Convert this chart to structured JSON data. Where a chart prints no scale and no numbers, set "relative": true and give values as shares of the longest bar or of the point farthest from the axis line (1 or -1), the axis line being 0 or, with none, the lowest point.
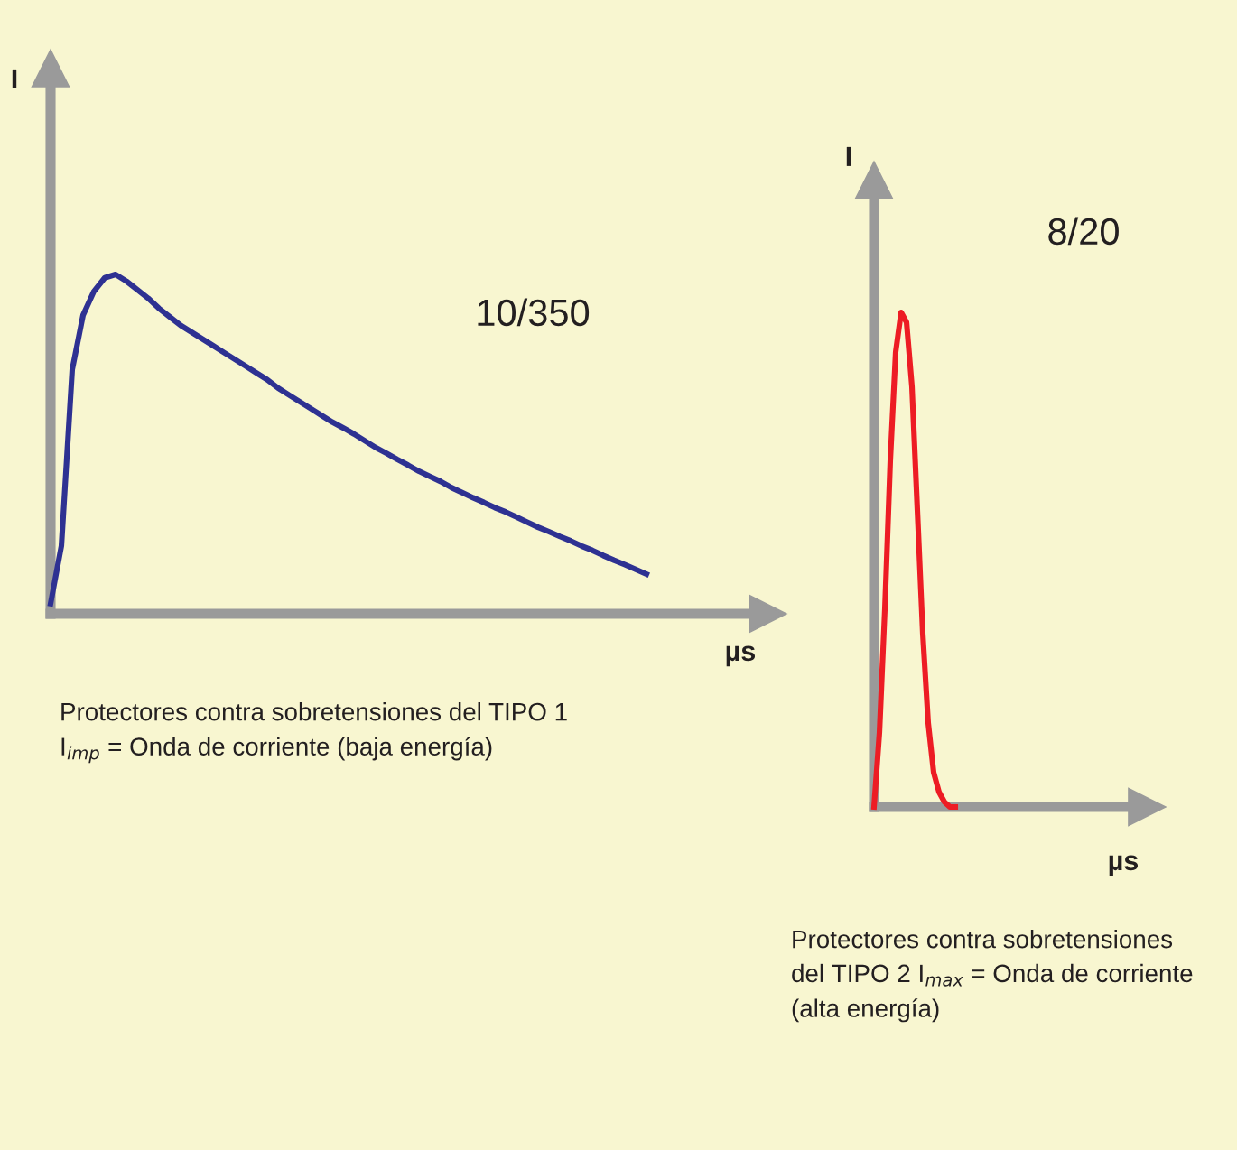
{
  "chart_data": [
    {
      "type": "line",
      "xlabel": "µs",
      "ylabel": "I",
      "relative": true,
      "categories": [
        null,
        null,
        null,
        null,
        null,
        null,
        null,
        null,
        null,
        null,
        null,
        null,
        null,
        null,
        null,
        null,
        null,
        null,
        null,
        null,
        null,
        null,
        null,
        null,
        null,
        null,
        null,
        null,
        null,
        null,
        null,
        null,
        null,
        null,
        null,
        null,
        null,
        null,
        null,
        null,
        null,
        null,
        null,
        null,
        null,
        null,
        null,
        null,
        null,
        null,
        null,
        null,
        null,
        null,
        null,
        null
      ],
      "series": [
        {
          "color": "#2e3192",
          "values": [
            0.03,
            0.2,
            0.72,
            0.88,
            0.95,
            0.99,
            1.0,
            0.98,
            0.955,
            0.93,
            0.9,
            0.875,
            0.85,
            0.83,
            0.81,
            0.79,
            0.77,
            0.75,
            0.73,
            0.71,
            0.69,
            0.665,
            0.645,
            0.625,
            0.605,
            0.585,
            0.565,
            0.548,
            0.53,
            0.51,
            0.49,
            0.473,
            0.455,
            0.438,
            0.42,
            0.405,
            0.39,
            0.372,
            0.357,
            0.342,
            0.328,
            0.313,
            0.3,
            0.285,
            0.27,
            0.255,
            0.242,
            0.228,
            0.215,
            0.2,
            0.187,
            0.172,
            0.158,
            0.145,
            0.131,
            0.117
          ]
        }
      ],
      "annotations": [
        "10/350",
        "Protectores contra sobretensiones del TIPO 1\nI$_{imp}$ = Onda de corriente (baja energía)"
      ]
    },
    {
      "type": "line",
      "xlabel": "µs",
      "ylabel": "I",
      "relative": true,
      "categories": [
        null,
        null,
        null,
        null,
        null,
        null,
        null,
        null,
        null,
        null,
        null,
        null,
        null,
        null,
        null,
        null
      ],
      "series": [
        {
          "color": "#ed1c24",
          "values": [
            0.0,
            0.15,
            0.4,
            0.7,
            0.92,
            1.0,
            0.98,
            0.85,
            0.6,
            0.35,
            0.17,
            0.07,
            0.03,
            0.01,
            0.0,
            0.0
          ]
        }
      ],
      "annotations": [
        "8/20",
        "Protectores contra sobretensiones\ndel TIPO 2 I$_{max}$ = Onda de corriente\n(alta energía)"
      ]
    }
  ]
}
